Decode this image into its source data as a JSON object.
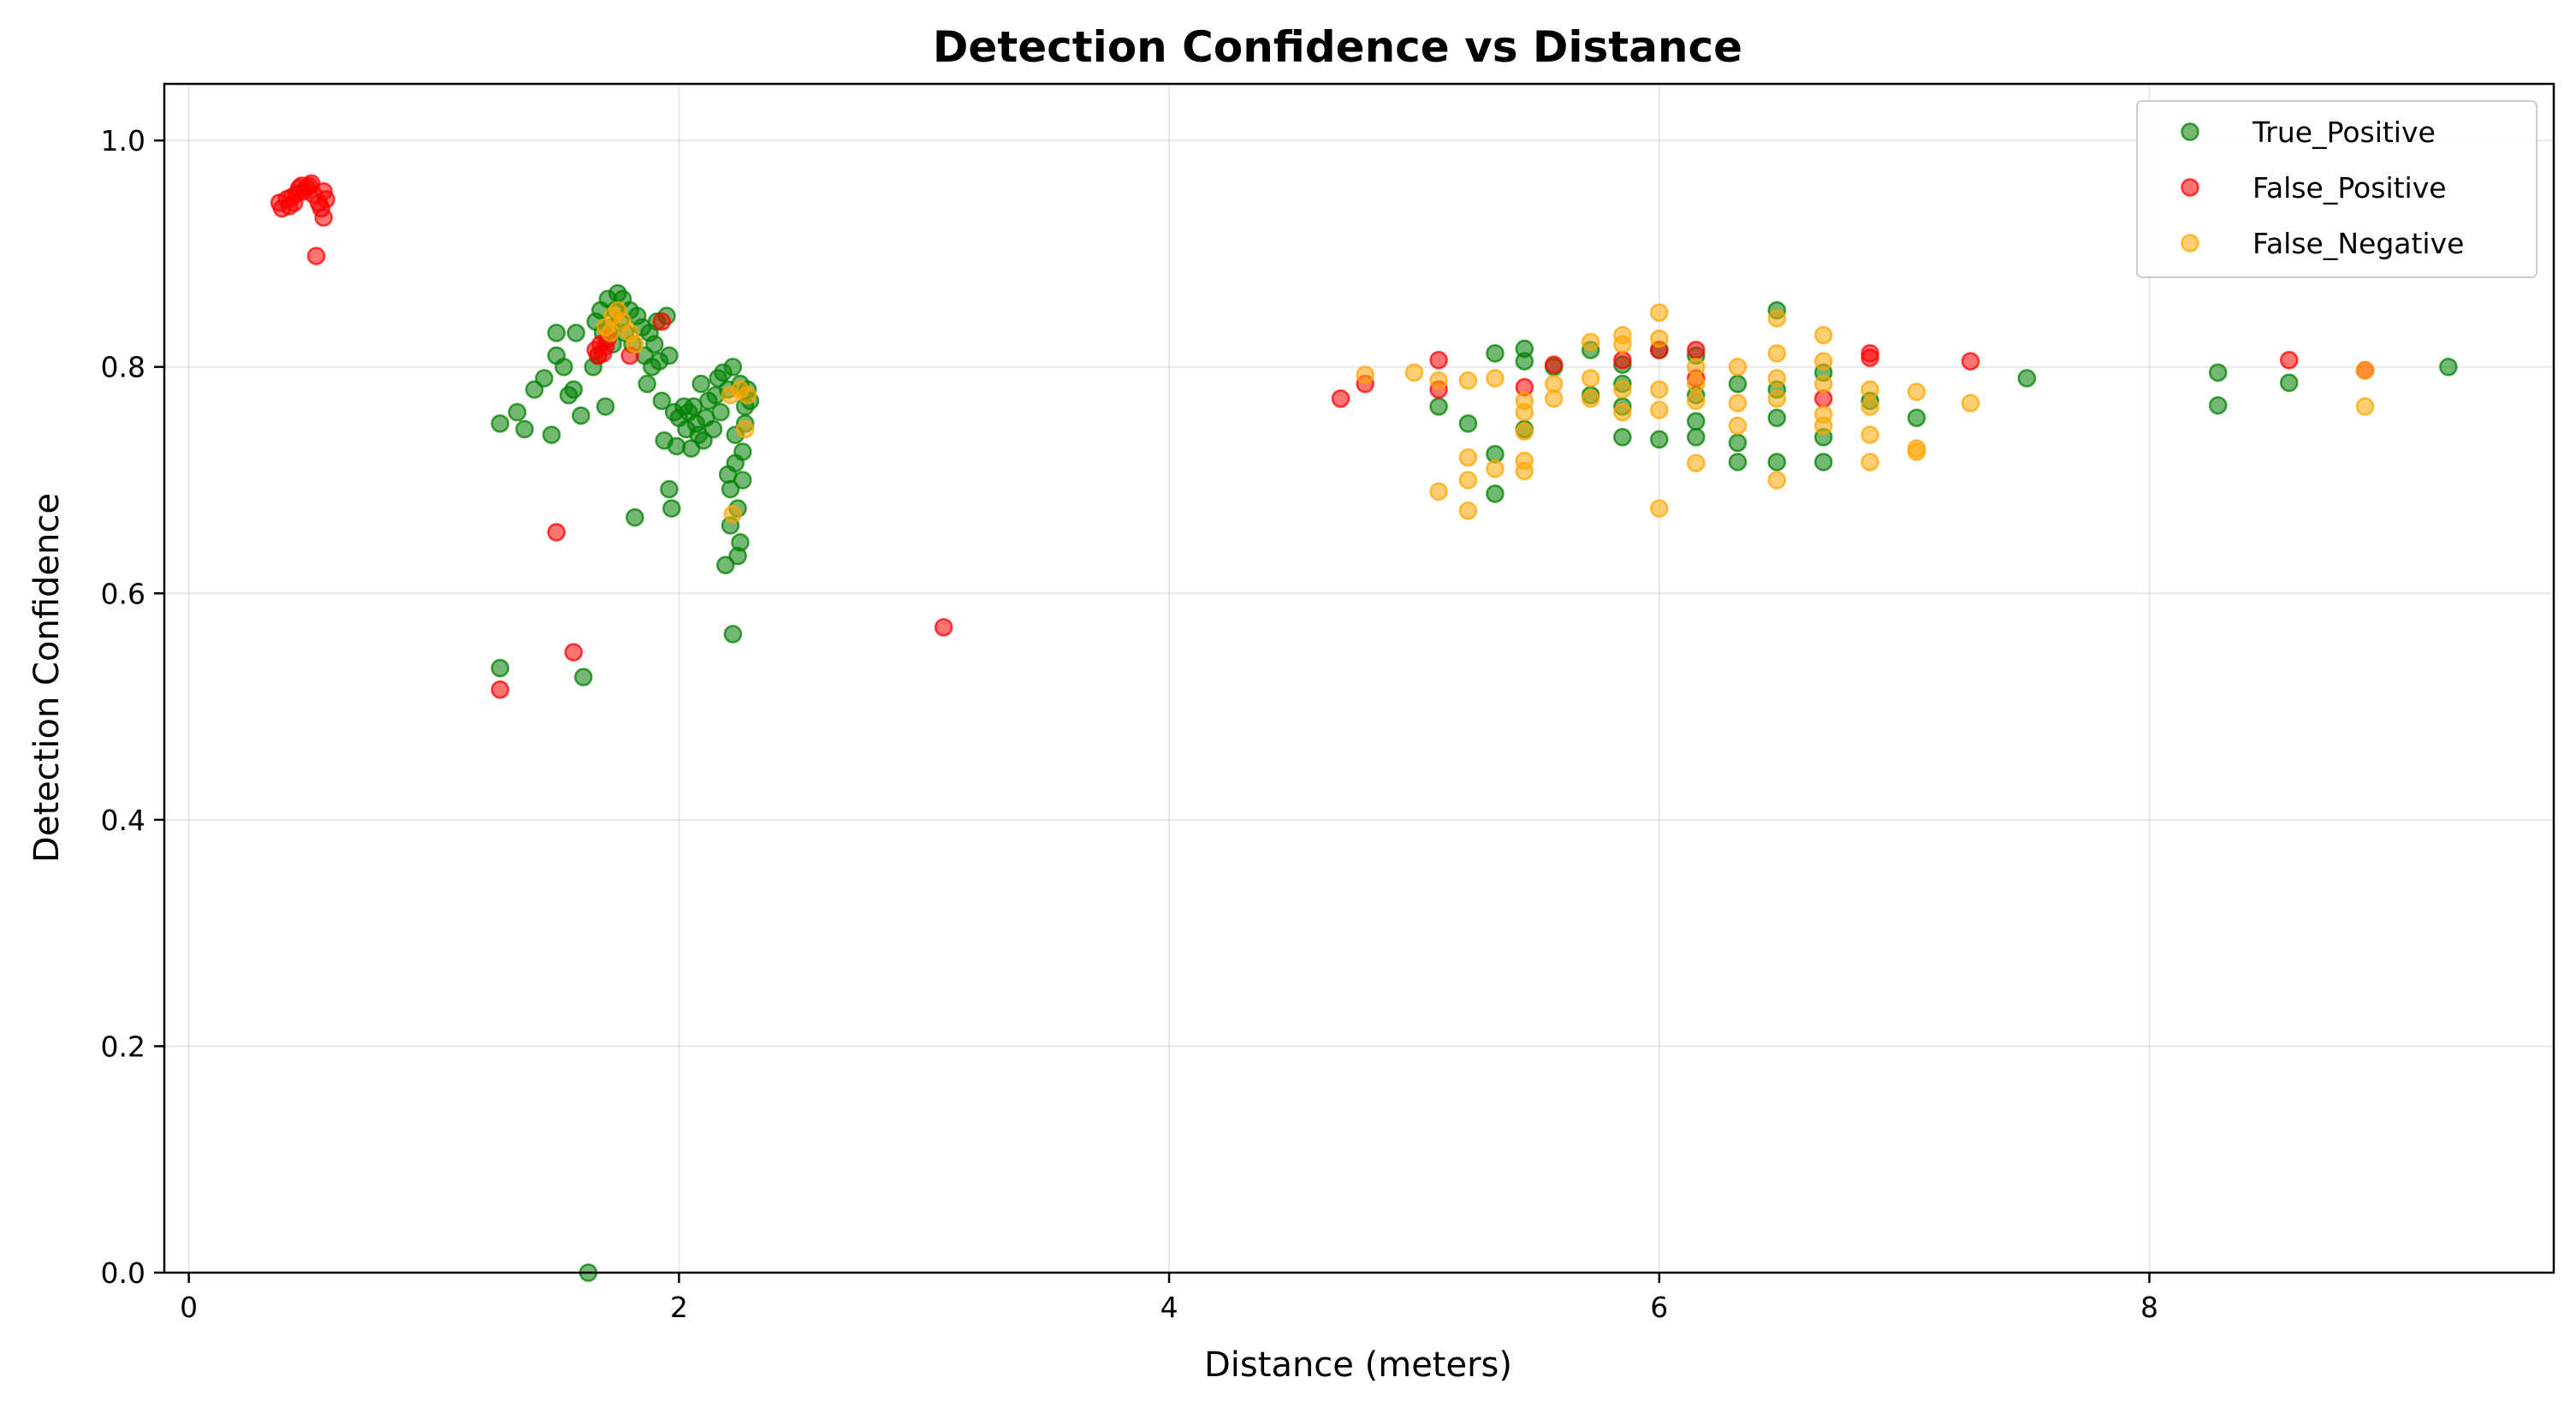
{
  "chart_data": {
    "type": "scatter",
    "title": "Detection Confidence vs Distance",
    "xlabel": "Distance (meters)",
    "ylabel": "Detection Confidence",
    "xlim": [
      -0.1,
      9.65
    ],
    "ylim": [
      0.0,
      1.05
    ],
    "xticks": [
      0,
      2,
      4,
      6,
      8
    ],
    "xtick_labels": [
      "0",
      "2",
      "4",
      "6",
      "8"
    ],
    "yticks": [
      0.0,
      0.2,
      0.4,
      0.6,
      0.8,
      1.0
    ],
    "ytick_labels": [
      "0.0",
      "0.2",
      "0.4",
      "0.6",
      "0.8",
      "1.0"
    ],
    "grid": true,
    "legend_position": "top-right",
    "series": [
      {
        "name": "True_Positive",
        "color": "#008000",
        "points": [
          [
            1.27,
            0.75
          ],
          [
            1.27,
            0.534
          ],
          [
            1.34,
            0.76
          ],
          [
            1.37,
            0.745
          ],
          [
            1.41,
            0.78
          ],
          [
            1.45,
            0.79
          ],
          [
            1.48,
            0.74
          ],
          [
            1.5,
            0.81
          ],
          [
            1.5,
            0.83
          ],
          [
            1.53,
            0.8
          ],
          [
            1.55,
            0.775
          ],
          [
            1.57,
            0.78
          ],
          [
            1.58,
            0.83
          ],
          [
            1.6,
            0.757
          ],
          [
            1.61,
            0.526
          ],
          [
            1.63,
            0.0
          ],
          [
            1.65,
            0.8
          ],
          [
            1.66,
            0.84
          ],
          [
            1.67,
            0.81
          ],
          [
            1.68,
            0.85
          ],
          [
            1.69,
            0.83
          ],
          [
            1.7,
            0.765
          ],
          [
            1.71,
            0.86
          ],
          [
            1.72,
            0.835
          ],
          [
            1.73,
            0.82
          ],
          [
            1.74,
            0.85
          ],
          [
            1.75,
            0.865
          ],
          [
            1.76,
            0.84
          ],
          [
            1.77,
            0.86
          ],
          [
            1.78,
            0.83
          ],
          [
            1.8,
            0.85
          ],
          [
            1.81,
            0.82
          ],
          [
            1.82,
            0.667
          ],
          [
            1.83,
            0.845
          ],
          [
            1.85,
            0.835
          ],
          [
            1.86,
            0.81
          ],
          [
            1.87,
            0.785
          ],
          [
            1.88,
            0.83
          ],
          [
            1.89,
            0.8
          ],
          [
            1.9,
            0.82
          ],
          [
            1.91,
            0.84
          ],
          [
            1.92,
            0.805
          ],
          [
            1.93,
            0.77
          ],
          [
            1.94,
            0.735
          ],
          [
            1.95,
            0.845
          ],
          [
            1.96,
            0.81
          ],
          [
            1.96,
            0.692
          ],
          [
            1.97,
            0.675
          ],
          [
            1.98,
            0.76
          ],
          [
            1.99,
            0.73
          ],
          [
            2.0,
            0.755
          ],
          [
            2.02,
            0.765
          ],
          [
            2.03,
            0.745
          ],
          [
            2.04,
            0.76
          ],
          [
            2.05,
            0.728
          ],
          [
            2.06,
            0.765
          ],
          [
            2.07,
            0.75
          ],
          [
            2.08,
            0.74
          ],
          [
            2.09,
            0.785
          ],
          [
            2.1,
            0.735
          ],
          [
            2.11,
            0.755
          ],
          [
            2.12,
            0.77
          ],
          [
            2.14,
            0.745
          ],
          [
            2.15,
            0.775
          ],
          [
            2.16,
            0.79
          ],
          [
            2.17,
            0.76
          ],
          [
            2.18,
            0.795
          ],
          [
            2.19,
            0.625
          ],
          [
            2.2,
            0.78
          ],
          [
            2.2,
            0.705
          ],
          [
            2.21,
            0.66
          ],
          [
            2.21,
            0.692
          ],
          [
            2.22,
            0.8
          ],
          [
            2.22,
            0.564
          ],
          [
            2.23,
            0.74
          ],
          [
            2.23,
            0.715
          ],
          [
            2.24,
            0.675
          ],
          [
            2.24,
            0.633
          ],
          [
            2.25,
            0.785
          ],
          [
            2.25,
            0.645
          ],
          [
            2.26,
            0.725
          ],
          [
            2.26,
            0.7
          ],
          [
            2.27,
            0.765
          ],
          [
            2.27,
            0.75
          ],
          [
            2.28,
            0.78
          ],
          [
            2.29,
            0.77
          ],
          [
            5.1,
            0.765
          ],
          [
            5.22,
            0.75
          ],
          [
            5.33,
            0.812
          ],
          [
            5.33,
            0.723
          ],
          [
            5.33,
            0.688
          ],
          [
            5.45,
            0.816
          ],
          [
            5.45,
            0.805
          ],
          [
            5.45,
            0.745
          ],
          [
            5.57,
            0.8
          ],
          [
            5.72,
            0.815
          ],
          [
            5.72,
            0.775
          ],
          [
            5.85,
            0.802
          ],
          [
            5.85,
            0.785
          ],
          [
            5.85,
            0.765
          ],
          [
            5.85,
            0.738
          ],
          [
            6.0,
            0.815
          ],
          [
            6.0,
            0.736
          ],
          [
            6.15,
            0.81
          ],
          [
            6.15,
            0.775
          ],
          [
            6.15,
            0.752
          ],
          [
            6.15,
            0.738
          ],
          [
            6.32,
            0.785
          ],
          [
            6.32,
            0.733
          ],
          [
            6.32,
            0.716
          ],
          [
            6.48,
            0.85
          ],
          [
            6.48,
            0.78
          ],
          [
            6.48,
            0.755
          ],
          [
            6.48,
            0.716
          ],
          [
            6.67,
            0.795
          ],
          [
            6.67,
            0.738
          ],
          [
            6.67,
            0.716
          ],
          [
            6.86,
            0.77
          ],
          [
            7.05,
            0.755
          ],
          [
            7.5,
            0.79
          ],
          [
            8.28,
            0.795
          ],
          [
            8.28,
            0.766
          ],
          [
            8.57,
            0.786
          ],
          [
            9.22,
            0.8
          ]
        ]
      },
      {
        "name": "False_Positive",
        "color": "#ff0000",
        "points": [
          [
            0.37,
            0.945
          ],
          [
            0.38,
            0.94
          ],
          [
            0.4,
            0.948
          ],
          [
            0.41,
            0.942
          ],
          [
            0.42,
            0.95
          ],
          [
            0.43,
            0.945
          ],
          [
            0.44,
            0.953
          ],
          [
            0.45,
            0.958
          ],
          [
            0.46,
            0.96
          ],
          [
            0.47,
            0.955
          ],
          [
            0.48,
            0.958
          ],
          [
            0.49,
            0.96
          ],
          [
            0.5,
            0.962
          ],
          [
            0.51,
            0.952
          ],
          [
            0.52,
            0.898
          ],
          [
            0.53,
            0.945
          ],
          [
            0.54,
            0.94
          ],
          [
            0.55,
            0.932
          ],
          [
            0.55,
            0.955
          ],
          [
            0.56,
            0.948
          ],
          [
            1.27,
            0.515
          ],
          [
            1.5,
            0.654
          ],
          [
            1.57,
            0.548
          ],
          [
            1.66,
            0.815
          ],
          [
            1.67,
            0.81
          ],
          [
            1.68,
            0.82
          ],
          [
            1.69,
            0.812
          ],
          [
            1.7,
            0.818
          ],
          [
            1.71,
            0.825
          ],
          [
            1.8,
            0.81
          ],
          [
            1.93,
            0.84
          ],
          [
            3.08,
            0.57
          ],
          [
            4.7,
            0.772
          ],
          [
            4.8,
            0.785
          ],
          [
            5.1,
            0.806
          ],
          [
            5.1,
            0.78
          ],
          [
            5.45,
            0.782
          ],
          [
            5.57,
            0.802
          ],
          [
            5.85,
            0.806
          ],
          [
            6.0,
            0.815
          ],
          [
            6.15,
            0.815
          ],
          [
            6.15,
            0.79
          ],
          [
            6.67,
            0.772
          ],
          [
            6.86,
            0.812
          ],
          [
            6.86,
            0.808
          ],
          [
            7.27,
            0.805
          ],
          [
            8.57,
            0.806
          ],
          [
            8.88,
            0.797
          ]
        ]
      },
      {
        "name": "False_Negative",
        "color": "#ffa500",
        "points": [
          [
            1.7,
            0.835
          ],
          [
            1.73,
            0.845
          ],
          [
            1.75,
            0.85
          ],
          [
            1.77,
            0.84
          ],
          [
            1.8,
            0.83
          ],
          [
            1.82,
            0.82
          ],
          [
            1.72,
            0.83
          ],
          [
            2.21,
            0.775
          ],
          [
            2.22,
            0.67
          ],
          [
            2.25,
            0.78
          ],
          [
            2.27,
            0.745
          ],
          [
            2.28,
            0.775
          ],
          [
            4.8,
            0.793
          ],
          [
            5.0,
            0.795
          ],
          [
            5.1,
            0.788
          ],
          [
            5.1,
            0.69
          ],
          [
            5.22,
            0.788
          ],
          [
            5.22,
            0.72
          ],
          [
            5.22,
            0.7
          ],
          [
            5.22,
            0.673
          ],
          [
            5.33,
            0.79
          ],
          [
            5.33,
            0.71
          ],
          [
            5.45,
            0.77
          ],
          [
            5.45,
            0.76
          ],
          [
            5.45,
            0.743
          ],
          [
            5.45,
            0.717
          ],
          [
            5.45,
            0.708
          ],
          [
            5.57,
            0.785
          ],
          [
            5.57,
            0.772
          ],
          [
            5.72,
            0.822
          ],
          [
            5.72,
            0.79
          ],
          [
            5.72,
            0.772
          ],
          [
            5.85,
            0.828
          ],
          [
            5.85,
            0.82
          ],
          [
            5.85,
            0.78
          ],
          [
            5.85,
            0.76
          ],
          [
            6.0,
            0.848
          ],
          [
            6.0,
            0.825
          ],
          [
            6.0,
            0.78
          ],
          [
            6.0,
            0.762
          ],
          [
            6.0,
            0.675
          ],
          [
            6.15,
            0.8
          ],
          [
            6.15,
            0.785
          ],
          [
            6.15,
            0.77
          ],
          [
            6.15,
            0.715
          ],
          [
            6.32,
            0.8
          ],
          [
            6.32,
            0.768
          ],
          [
            6.32,
            0.748
          ],
          [
            6.48,
            0.843
          ],
          [
            6.48,
            0.812
          ],
          [
            6.48,
            0.79
          ],
          [
            6.48,
            0.772
          ],
          [
            6.48,
            0.7
          ],
          [
            6.67,
            0.828
          ],
          [
            6.67,
            0.805
          ],
          [
            6.67,
            0.785
          ],
          [
            6.67,
            0.758
          ],
          [
            6.67,
            0.748
          ],
          [
            6.86,
            0.78
          ],
          [
            6.86,
            0.765
          ],
          [
            6.86,
            0.74
          ],
          [
            6.86,
            0.716
          ],
          [
            7.05,
            0.778
          ],
          [
            7.05,
            0.728
          ],
          [
            7.05,
            0.725
          ],
          [
            7.27,
            0.768
          ],
          [
            8.88,
            0.797
          ],
          [
            8.88,
            0.765
          ]
        ]
      }
    ]
  }
}
